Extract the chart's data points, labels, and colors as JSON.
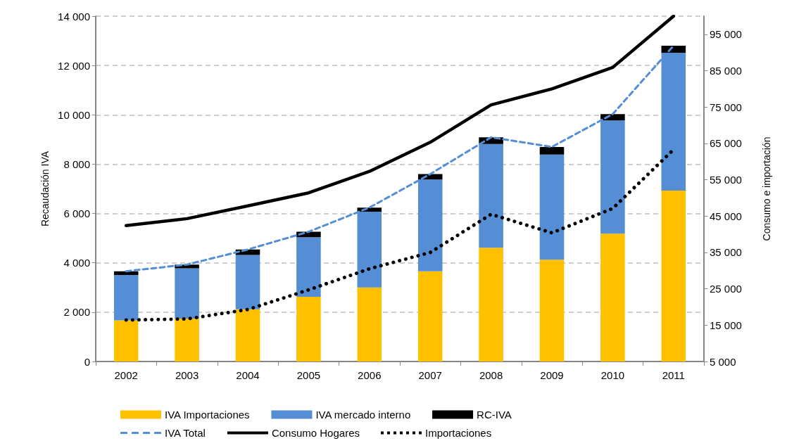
{
  "chart_data": {
    "type": "bar",
    "stacked": true,
    "ylabel": "Recaudación IVA",
    "y2label": "Consumo e importación",
    "legend": "bottom",
    "grid": "y",
    "categories": [
      "2002",
      "2003",
      "2004",
      "2005",
      "2006",
      "2007",
      "2008",
      "2009",
      "2010",
      "2011"
    ],
    "ylim": [
      0,
      14000
    ],
    "yticks": [
      0,
      {
        "value": 2000,
        "label": "2 000"
      },
      {
        "value": 4000,
        "label": "4 000"
      },
      {
        "value": 6000,
        "label": "6 000"
      },
      {
        "value": 8000,
        "label": "8 000"
      },
      {
        "value": 10000,
        "label": "10 000"
      },
      {
        "value": 12000,
        "label": "12 000"
      },
      {
        "value": 14000,
        "label": "14 000"
      }
    ],
    "y2lim": [
      5000,
      100000
    ],
    "y2ticks": [
      {
        "value": 5000,
        "label": "5 000"
      },
      {
        "value": 15000,
        "label": "15 000"
      },
      {
        "value": 25000,
        "label": "25 000"
      },
      {
        "value": 35000,
        "label": "35 000"
      },
      {
        "value": 45000,
        "label": "45 000"
      },
      {
        "value": 55000,
        "label": "55 000"
      },
      {
        "value": 65000,
        "label": "65 000"
      },
      {
        "value": 75000,
        "label": "75 000"
      },
      {
        "value": 85000,
        "label": "85 000"
      },
      {
        "value": 95000,
        "label": "95 000"
      }
    ],
    "series": [
      {
        "name": "IVA Importaciones",
        "color": "#ffc000",
        "values": [
          1670,
          1740,
          2120,
          2620,
          3000,
          3660,
          4610,
          4130,
          5180,
          6930
        ]
      },
      {
        "name": "IVA mercado interno",
        "color": "#558ed5",
        "values": [
          1840,
          2040,
          2200,
          2420,
          3070,
          3720,
          4210,
          4260,
          4590,
          5590
        ]
      },
      {
        "name": "RC-IVA",
        "color": "#000000",
        "values": [
          150,
          150,
          220,
          220,
          170,
          220,
          270,
          310,
          260,
          280
        ]
      },
      {
        "name": "IVA Total",
        "type": "line",
        "color": "#558ed5",
        "line_style": "dashed",
        "marker": "none",
        "values": [
          3660,
          3930,
          4540,
          5260,
          6240,
          7600,
          9090,
          8700,
          10030,
          12800
        ]
      },
      {
        "name": "Consumo Hogares",
        "type": "line",
        "color": "#000000",
        "line_style": "solid",
        "marker": "none",
        "axis": "y2",
        "values": [
          42400,
          44300,
          47800,
          51400,
          57300,
          65300,
          75600,
          80000,
          85900,
          100000
        ]
      },
      {
        "name": "Importaciones",
        "type": "line",
        "color": "#000000",
        "line_style": "dotted",
        "marker": "none",
        "axis": "y2",
        "values": [
          16400,
          16700,
          19300,
          24700,
          30500,
          35000,
          45500,
          40400,
          47100,
          63300
        ]
      }
    ]
  }
}
